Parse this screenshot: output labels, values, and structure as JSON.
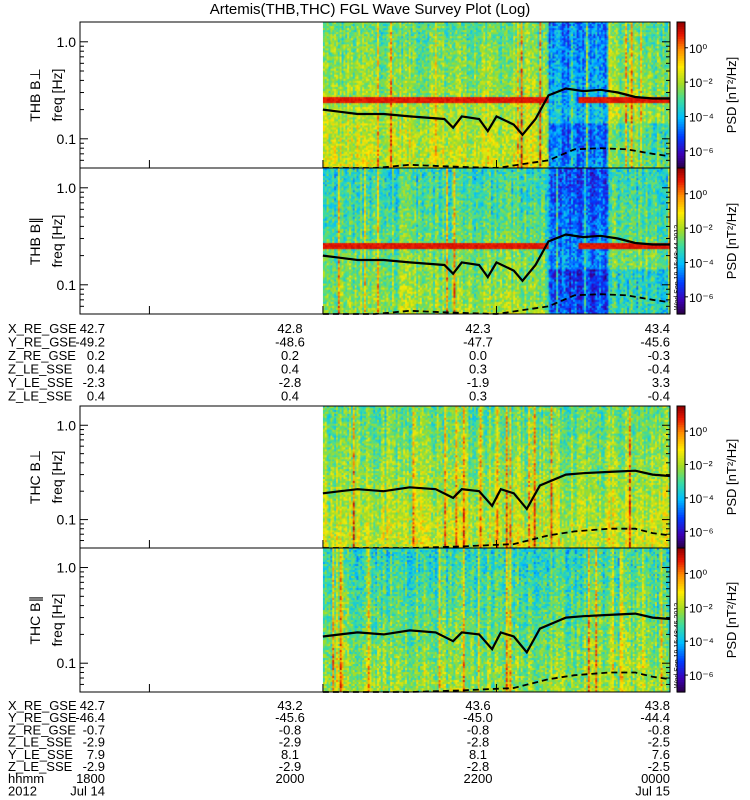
{
  "chart_data": {
    "type": "heatmap",
    "title": "Artemis(THB,THC) FGL Wave Survey Plot (Log)",
    "colorbar": {
      "label": "PSD [nT²/Hz]",
      "tick_labels": [
        "10⁰",
        "10⁻²",
        "10⁻⁴",
        "10⁻⁶"
      ],
      "tick_values": [
        0,
        -2,
        -4,
        -6
      ],
      "log_range": [
        -7,
        1.5
      ]
    },
    "frequency_axis": {
      "label": "freq [Hz]",
      "scale": "log",
      "range_hz": [
        0.05,
        1.6
      ],
      "tick_labels": [
        "1.0",
        "0.1"
      ],
      "tick_values_hz": [
        1.0,
        0.1
      ]
    },
    "time_axis": {
      "range_hhmm_decimal": [
        17.2,
        24.0
      ],
      "data_start": 20.0,
      "major_ticks": [
        18.0,
        20.0,
        22.0,
        24.0
      ]
    },
    "panels": [
      {
        "id": "thb-bperp",
        "probe": "THB",
        "label": "THB B⊥",
        "component": "perp",
        "stamp": "",
        "has_red_band": true,
        "cyan_region": [
          22.6,
          23.3
        ]
      },
      {
        "id": "thb-bpar",
        "probe": "THB",
        "label": "THB B∥",
        "component": "par",
        "stamp": "Wed Sep 19 15:48:44 2012",
        "has_red_band": true,
        "cyan_region": [
          22.6,
          23.3
        ]
      },
      {
        "id": "thc-bperp",
        "probe": "THC",
        "label": "THC B⊥",
        "component": "perp",
        "stamp": "",
        "has_red_band": false,
        "cyan_region": null
      },
      {
        "id": "thc-bpar",
        "probe": "THC",
        "label": "THC B∥",
        "component": "par",
        "stamp": "Wed Sep 19 15:48:45 2012",
        "has_red_band": false,
        "cyan_region": null
      }
    ],
    "cyclotron_curve_upper": {
      "description": "ion cyclotron frequency (solid)",
      "thb": [
        [
          20.0,
          0.2
        ],
        [
          20.2,
          0.19
        ],
        [
          20.4,
          0.18
        ],
        [
          20.7,
          0.18
        ],
        [
          21.0,
          0.17
        ],
        [
          21.4,
          0.16
        ],
        [
          21.5,
          0.13
        ],
        [
          21.6,
          0.17
        ],
        [
          21.8,
          0.16
        ],
        [
          21.9,
          0.12
        ],
        [
          22.0,
          0.17
        ],
        [
          22.2,
          0.14
        ],
        [
          22.3,
          0.11
        ],
        [
          22.45,
          0.16
        ],
        [
          22.6,
          0.28
        ],
        [
          22.8,
          0.33
        ],
        [
          23.0,
          0.31
        ],
        [
          23.2,
          0.32
        ],
        [
          23.4,
          0.3
        ],
        [
          23.6,
          0.27
        ],
        [
          23.8,
          0.26
        ],
        [
          24.0,
          0.26
        ]
      ],
      "thc": [
        [
          20.0,
          0.19
        ],
        [
          20.2,
          0.2
        ],
        [
          20.4,
          0.21
        ],
        [
          20.7,
          0.2
        ],
        [
          21.0,
          0.22
        ],
        [
          21.3,
          0.21
        ],
        [
          21.5,
          0.17
        ],
        [
          21.6,
          0.21
        ],
        [
          21.8,
          0.2
        ],
        [
          21.95,
          0.14
        ],
        [
          22.05,
          0.21
        ],
        [
          22.2,
          0.19
        ],
        [
          22.35,
          0.13
        ],
        [
          22.5,
          0.23
        ],
        [
          22.8,
          0.3
        ],
        [
          23.0,
          0.31
        ],
        [
          23.3,
          0.32
        ],
        [
          23.6,
          0.33
        ],
        [
          23.8,
          0.3
        ],
        [
          24.0,
          0.29
        ]
      ]
    },
    "cyclotron_curve_lower": {
      "description": "helium cyclotron frequency (dashed)",
      "thb": [
        [
          20.0,
          0.05
        ],
        [
          20.6,
          0.05
        ],
        [
          21.0,
          0.054
        ],
        [
          21.4,
          0.052
        ],
        [
          22.0,
          0.05
        ],
        [
          22.6,
          0.06
        ],
        [
          22.9,
          0.078
        ],
        [
          23.2,
          0.08
        ],
        [
          23.5,
          0.078
        ],
        [
          23.8,
          0.07
        ],
        [
          24.0,
          0.066
        ]
      ],
      "thc": [
        [
          20.0,
          0.05
        ],
        [
          20.6,
          0.05
        ],
        [
          21.0,
          0.05
        ],
        [
          21.6,
          0.052
        ],
        [
          22.2,
          0.055
        ],
        [
          22.6,
          0.068
        ],
        [
          22.9,
          0.075
        ],
        [
          23.3,
          0.08
        ],
        [
          23.6,
          0.08
        ],
        [
          23.8,
          0.072
        ],
        [
          24.0,
          0.068
        ]
      ]
    },
    "ephemeris_thb": {
      "labels": [
        "X_RE_GSE",
        "Y_RE_GSE",
        "Z_RE_GSE",
        "Z_LE_SSE",
        "Y_LE_SSE",
        "Z_LE_SSE"
      ],
      "columns": [
        [
          "42.7",
          "-49.2",
          "0.2",
          "0.4",
          "-2.3",
          "0.4"
        ],
        [
          "42.8",
          "-48.6",
          "0.2",
          "0.4",
          "-2.8",
          "0.4"
        ],
        [
          "42.3",
          "-47.7",
          "0.0",
          "0.3",
          "-1.9",
          "0.3"
        ],
        [
          "43.4",
          "-45.6",
          "-0.3",
          "-0.4",
          "3.3",
          "-0.4"
        ]
      ]
    },
    "ephemeris_thc": {
      "labels": [
        "X_RE_GSE",
        "Y_RE_GSE",
        "Z_RE_GSE",
        "Z_LE_SSE",
        "Y_LE_SSE",
        "Z_LE_SSE",
        "hhmm",
        "2012"
      ],
      "columns": [
        [
          "42.7",
          "-46.4",
          "-0.7",
          "-2.9",
          "7.9",
          "-2.9",
          "1800",
          "Jul 14"
        ],
        [
          "43.2",
          "-45.6",
          "-0.8",
          "-2.9",
          "8.1",
          "-2.9",
          "2000",
          ""
        ],
        [
          "43.6",
          "-45.0",
          "-0.8",
          "-2.8",
          "8.1",
          "-2.8",
          "2200",
          ""
        ],
        [
          "43.8",
          "-44.4",
          "-0.8",
          "-2.5",
          "7.6",
          "-2.5",
          "0000",
          "Jul 15"
        ]
      ]
    }
  }
}
